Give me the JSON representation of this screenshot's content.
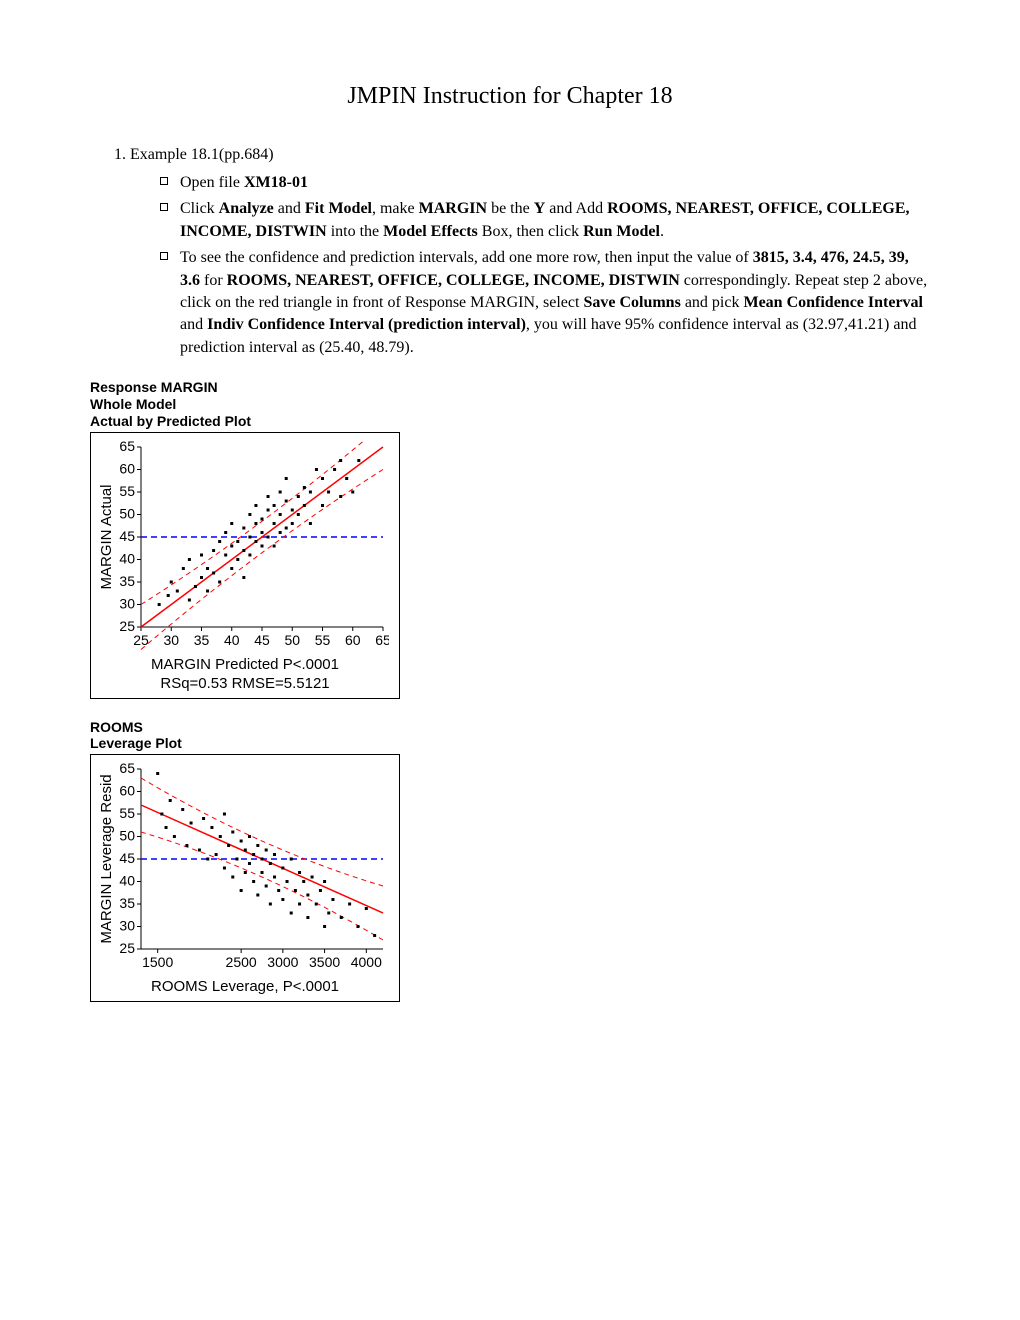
{
  "title": "JMPIN Instruction for Chapter 18",
  "list_label": "Example 18.1(pp.684)",
  "bullets": [
    {
      "parts": [
        "Open file ",
        {
          "b": "XM18-01"
        }
      ]
    },
    {
      "parts": [
        "Click ",
        {
          "b": "Analyze"
        },
        " and ",
        {
          "b": "Fit Model"
        },
        ", make ",
        {
          "b": "MARGIN"
        },
        " be the ",
        {
          "b": "Y"
        },
        " and Add ",
        {
          "b": "ROOMS, NEAREST, OFFICE, COLLEGE, INCOME, DISTWIN"
        },
        " into the ",
        {
          "b": "Model Effects"
        },
        " Box, then click ",
        {
          "b": "Run Model"
        },
        "."
      ]
    },
    {
      "parts": [
        "To see the confidence and prediction intervals, add one more row, then input the value of ",
        {
          "b": "3815, 3.4, 476, 24.5, 39, 3.6"
        },
        " for ",
        {
          "b": "ROOMS, NEAREST, OFFICE, COLLEGE, INCOME, DISTWIN"
        },
        " correspondingly. Repeat step 2 above, click on the red triangle in front of Response MARGIN, select ",
        {
          "b": "Save Columns"
        },
        " and pick ",
        {
          "b": "Mean Confidence Interval"
        },
        " and ",
        {
          "b": "Indiv Confidence Interval (prediction interval)"
        },
        ", you will have 95% confidence interval as (32.97,41.21) and prediction interval as (25.40, 48.79)."
      ]
    }
  ],
  "chart1": {
    "heading_lines": [
      "Response MARGIN",
      "Whole Model",
      "Actual by Predicted Plot"
    ],
    "y_label": "MARGIN Actual",
    "y_ticks": [
      25,
      30,
      35,
      40,
      45,
      50,
      55,
      60,
      65
    ],
    "y_min": 25,
    "y_max": 65,
    "x_ticks": [
      25,
      30,
      35,
      40,
      45,
      50,
      55,
      60,
      65
    ],
    "x_min": 25,
    "x_max": 65,
    "mean_line_y": 45,
    "fit_line_color": "#ff0000",
    "ci_color": "#ff0000",
    "mean_line_color": "#0000ff",
    "point_color": "#000000",
    "sub_lines": [
      "MARGIN Predicted P<.0001",
      "RSq=0.53 RMSE=5.5121"
    ],
    "fit_line": {
      "x1": 25,
      "y1": 25,
      "x2": 65,
      "y2": 65
    },
    "ci_upper": [
      [
        25,
        30
      ],
      [
        45,
        47
      ],
      [
        65,
        70
      ]
    ],
    "ci_lower": [
      [
        25,
        20
      ],
      [
        45,
        43
      ],
      [
        65,
        60
      ]
    ],
    "points": [
      [
        28,
        30
      ],
      [
        29.5,
        32
      ],
      [
        30,
        35
      ],
      [
        31,
        33
      ],
      [
        32,
        38
      ],
      [
        33,
        31
      ],
      [
        33,
        40
      ],
      [
        34,
        34
      ],
      [
        35,
        36
      ],
      [
        35,
        41
      ],
      [
        36,
        38
      ],
      [
        36,
        33
      ],
      [
        37,
        42
      ],
      [
        37,
        37
      ],
      [
        38,
        35
      ],
      [
        38,
        44
      ],
      [
        39,
        41
      ],
      [
        39,
        46
      ],
      [
        40,
        43
      ],
      [
        40,
        38
      ],
      [
        40,
        48
      ],
      [
        41,
        40
      ],
      [
        41,
        44
      ],
      [
        42,
        42
      ],
      [
        42,
        47
      ],
      [
        42,
        36
      ],
      [
        43,
        45
      ],
      [
        43,
        50
      ],
      [
        43,
        41
      ],
      [
        44,
        48
      ],
      [
        44,
        44
      ],
      [
        44,
        52
      ],
      [
        45,
        43
      ],
      [
        45,
        49
      ],
      [
        45,
        46
      ],
      [
        46,
        51
      ],
      [
        46,
        45
      ],
      [
        46,
        54
      ],
      [
        47,
        48
      ],
      [
        47,
        43
      ],
      [
        47,
        52
      ],
      [
        48,
        50
      ],
      [
        48,
        46
      ],
      [
        48,
        55
      ],
      [
        49,
        53
      ],
      [
        49,
        47
      ],
      [
        49,
        58
      ],
      [
        50,
        51
      ],
      [
        50,
        48
      ],
      [
        51,
        54
      ],
      [
        51,
        50
      ],
      [
        52,
        52
      ],
      [
        52,
        56
      ],
      [
        53,
        48
      ],
      [
        53,
        55
      ],
      [
        54,
        60
      ],
      [
        55,
        52
      ],
      [
        55,
        58
      ],
      [
        56,
        55
      ],
      [
        57,
        60
      ],
      [
        58,
        54
      ],
      [
        58,
        62
      ],
      [
        59,
        58
      ],
      [
        60,
        55
      ],
      [
        61,
        62
      ]
    ]
  },
  "chart2": {
    "heading_lines": [
      "ROOMS",
      "Leverage Plot"
    ],
    "y_label": "MARGIN Leverage Resid",
    "y_ticks": [
      25,
      30,
      35,
      40,
      45,
      50,
      55,
      60,
      65
    ],
    "y_min": 25,
    "y_max": 65,
    "x_ticks": [
      1500,
      2500,
      3000,
      3500,
      4000
    ],
    "x_min": 1300,
    "x_max": 4200,
    "mean_line_y": 45,
    "fit_line_color": "#ff0000",
    "ci_color": "#ff0000",
    "mean_line_color": "#0000ff",
    "point_color": "#000000",
    "sub_lines": [
      "ROOMS Leverage, P<.0001"
    ],
    "fit_line": {
      "x1": 1300,
      "y1": 57,
      "x2": 4200,
      "y2": 33
    },
    "ci_upper": [
      [
        1300,
        63
      ],
      [
        2750,
        47
      ],
      [
        4200,
        39
      ]
    ],
    "ci_lower": [
      [
        1300,
        51
      ],
      [
        2750,
        43
      ],
      [
        4200,
        27
      ]
    ],
    "points": [
      [
        1500,
        64
      ],
      [
        1550,
        55
      ],
      [
        1600,
        52
      ],
      [
        1650,
        58
      ],
      [
        1700,
        50
      ],
      [
        1800,
        56
      ],
      [
        1850,
        48
      ],
      [
        1900,
        53
      ],
      [
        2000,
        47
      ],
      [
        2050,
        54
      ],
      [
        2100,
        45
      ],
      [
        2150,
        52
      ],
      [
        2200,
        46
      ],
      [
        2250,
        50
      ],
      [
        2300,
        43
      ],
      [
        2300,
        55
      ],
      [
        2350,
        48
      ],
      [
        2400,
        41
      ],
      [
        2400,
        51
      ],
      [
        2450,
        45
      ],
      [
        2500,
        49
      ],
      [
        2500,
        38
      ],
      [
        2550,
        47
      ],
      [
        2550,
        42
      ],
      [
        2600,
        44
      ],
      [
        2600,
        50
      ],
      [
        2650,
        40
      ],
      [
        2650,
        46
      ],
      [
        2700,
        48
      ],
      [
        2700,
        37
      ],
      [
        2750,
        45
      ],
      [
        2750,
        42
      ],
      [
        2800,
        47
      ],
      [
        2800,
        39
      ],
      [
        2850,
        44
      ],
      [
        2850,
        35
      ],
      [
        2900,
        41
      ],
      [
        2900,
        46
      ],
      [
        2950,
        38
      ],
      [
        3000,
        43
      ],
      [
        3000,
        36
      ],
      [
        3050,
        40
      ],
      [
        3100,
        45
      ],
      [
        3100,
        33
      ],
      [
        3150,
        38
      ],
      [
        3200,
        42
      ],
      [
        3200,
        35
      ],
      [
        3250,
        40
      ],
      [
        3300,
        32
      ],
      [
        3300,
        37
      ],
      [
        3350,
        41
      ],
      [
        3400,
        35
      ],
      [
        3450,
        38
      ],
      [
        3500,
        30
      ],
      [
        3500,
        40
      ],
      [
        3550,
        33
      ],
      [
        3600,
        36
      ],
      [
        3700,
        32
      ],
      [
        3800,
        35
      ],
      [
        3900,
        30
      ],
      [
        4000,
        34
      ],
      [
        4100,
        28
      ]
    ]
  }
}
